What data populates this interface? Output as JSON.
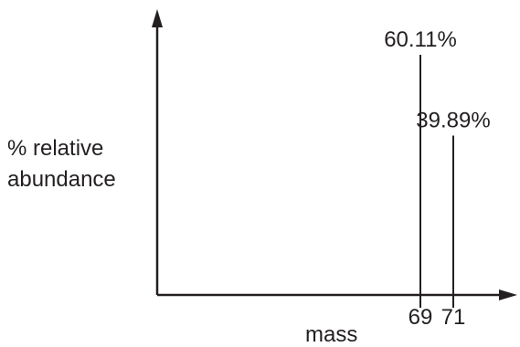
{
  "chart_data": {
    "type": "bar",
    "subtype": "mass-spectrum stick plot",
    "title": "",
    "xlabel": "mass",
    "ylabel_lines": [
      "% relative",
      "abundance"
    ],
    "categories": [
      "69",
      "71"
    ],
    "x": [
      69,
      71
    ],
    "values": [
      60.11,
      39.89
    ],
    "value_labels": [
      "60.11%",
      "39.89%"
    ],
    "axis_arrows": true,
    "grid": false,
    "legend": "none",
    "color": "#231f20"
  }
}
